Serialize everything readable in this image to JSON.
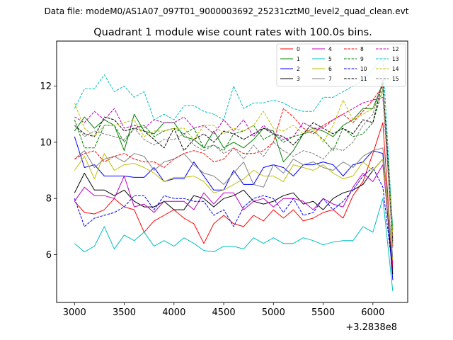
{
  "suptitle": "Data file: modeM0/AS1A07_097T01_9000003692_25231cztM0_level2_quad_clean.evt",
  "chart_data": {
    "type": "line",
    "title": "Quadrant 1 module wise count rates with 100.0s bins.",
    "xlabel": "",
    "ylabel": "",
    "x_offset_label": "+3.2838e8",
    "xlim": [
      2820,
      6350
    ],
    "ylim": [
      4.3,
      13.6
    ],
    "xticks": [
      3000,
      3500,
      4000,
      4500,
      5000,
      5500,
      6000
    ],
    "yticks": [
      6,
      8,
      10,
      12
    ],
    "grid": false,
    "legend": {
      "position": "top-right",
      "columns": 4
    },
    "x": [
      3000,
      3100,
      3200,
      3300,
      3400,
      3500,
      3600,
      3700,
      3800,
      3900,
      4000,
      4100,
      4200,
      4300,
      4400,
      4500,
      4600,
      4700,
      4800,
      4900,
      5000,
      5100,
      5200,
      5300,
      5400,
      5500,
      5600,
      5700,
      5800,
      5900,
      6000,
      6100,
      6200
    ],
    "series": [
      {
        "name": "0",
        "color": "#ff0000",
        "dash": "solid",
        "values": [
          7.9,
          7.5,
          7.45,
          7.6,
          8.0,
          7.7,
          7.6,
          6.8,
          7.2,
          7.4,
          7.6,
          7.3,
          7.1,
          6.4,
          7.1,
          7.4,
          7.1,
          7.0,
          7.4,
          7.2,
          7.6,
          7.3,
          7.6,
          7.2,
          7.3,
          7.5,
          7.6,
          7.3,
          8.1,
          8.6,
          9.6,
          10.7,
          5.5
        ]
      },
      {
        "name": "1",
        "color": "#008000",
        "dash": "solid",
        "values": [
          10.4,
          10.9,
          10.5,
          10.8,
          10.6,
          9.7,
          11.0,
          10.4,
          10.3,
          10.7,
          10.7,
          10.2,
          10.1,
          9.8,
          10.4,
          9.8,
          10.0,
          9.8,
          10.1,
          10.5,
          10.4,
          9.3,
          9.7,
          10.3,
          10.5,
          10.4,
          10.2,
          10.6,
          10.8,
          11.2,
          11.2,
          12.1,
          6.9
        ]
      },
      {
        "name": "2",
        "color": "#0000ff",
        "dash": "solid",
        "values": [
          10.2,
          9.1,
          9.2,
          8.8,
          8.8,
          8.8,
          8.75,
          8.75,
          9.1,
          8.6,
          8.7,
          8.7,
          9.3,
          8.8,
          8.3,
          8.3,
          9.0,
          8.5,
          8.5,
          9.1,
          9.2,
          9.1,
          8.8,
          9.2,
          9.2,
          9.3,
          9.2,
          8.8,
          9.2,
          9.3,
          9.7,
          9.6,
          5.1
        ]
      },
      {
        "name": "3",
        "color": "#000000",
        "dash": "solid",
        "values": [
          8.2,
          8.9,
          8.3,
          8.3,
          8.1,
          8.3,
          7.9,
          7.7,
          7.7,
          7.9,
          7.6,
          7.6,
          8.1,
          8.0,
          7.7,
          8.0,
          8.1,
          8.3,
          7.9,
          7.8,
          7.9,
          8.1,
          8.2,
          7.8,
          7.9,
          7.6,
          8.0,
          8.2,
          8.3,
          8.5,
          9.0,
          9.4,
          5.3
        ]
      },
      {
        "name": "4",
        "color": "#bf00bf",
        "dash": "solid",
        "values": [
          7.9,
          8.4,
          8.1,
          8.1,
          8.0,
          8.8,
          7.7,
          7.8,
          7.5,
          7.9,
          7.9,
          7.9,
          7.6,
          8.2,
          7.8,
          8.2,
          8.2,
          7.6,
          7.9,
          8.0,
          7.7,
          8.0,
          8.0,
          7.9,
          7.6,
          8.0,
          7.8,
          7.7,
          8.4,
          8.9,
          8.6,
          9.2,
          5.7
        ]
      },
      {
        "name": "5",
        "color": "#00bfbf",
        "dash": "solid",
        "values": [
          6.4,
          6.1,
          6.3,
          7.0,
          6.2,
          6.7,
          6.5,
          6.8,
          6.3,
          6.5,
          6.3,
          6.6,
          6.4,
          6.15,
          6.1,
          6.3,
          6.3,
          6.2,
          6.6,
          6.4,
          6.6,
          6.4,
          6.4,
          6.6,
          6.5,
          6.35,
          6.45,
          6.5,
          6.5,
          7.0,
          6.8,
          8.0,
          4.7
        ]
      },
      {
        "name": "6",
        "color": "#bfbf00",
        "dash": "solid",
        "values": [
          9.0,
          9.5,
          8.7,
          9.6,
          9.0,
          9.2,
          9.25,
          9.1,
          8.9,
          8.6,
          8.75,
          8.75,
          8.8,
          8.6,
          8.2,
          8.3,
          8.5,
          8.7,
          9.0,
          8.8,
          8.8,
          8.6,
          9.2,
          9.1,
          9.0,
          9.2,
          8.9,
          8.7,
          8.8,
          9.3,
          9.0,
          9.4,
          5.8
        ]
      },
      {
        "name": "7",
        "color": "#808080",
        "dash": "solid",
        "values": [
          9.4,
          9.7,
          9.1,
          9.4,
          9.5,
          9.3,
          9.6,
          9.5,
          9.0,
          9.3,
          9.4,
          9.6,
          9.2,
          8.9,
          8.8,
          8.5,
          8.9,
          9.3,
          8.5,
          8.4,
          9.2,
          8.9,
          9.4,
          9.2,
          9.3,
          9.1,
          9.0,
          9.3,
          9.1,
          9.5,
          9.7,
          9.8,
          5.9
        ]
      },
      {
        "name": "8",
        "color": "#ff0000",
        "dash": "dashed",
        "values": [
          9.4,
          9.6,
          9.7,
          9.3,
          9.5,
          9.6,
          9.4,
          9.3,
          9.3,
          9.1,
          9.4,
          9.6,
          9.7,
          9.6,
          9.3,
          9.4,
          9.8,
          9.6,
          9.6,
          9.7,
          10.0,
          11.2,
          10.9,
          10.5,
          10.3,
          10.6,
          10.8,
          11.0,
          10.7,
          11.1,
          11.5,
          12.0,
          6.3
        ]
      },
      {
        "name": "9",
        "color": "#008000",
        "dash": "dashed",
        "values": [
          10.8,
          9.8,
          9.8,
          10.6,
          10.6,
          10.0,
          10.5,
          10.6,
          10.2,
          10.4,
          10.5,
          10.3,
          10.5,
          9.8,
          9.9,
          9.7,
          10.3,
          10.4,
          10.6,
          10.1,
          10.3,
          10.0,
          10.2,
          10.3,
          10.4,
          10.1,
          9.7,
          10.5,
          10.2,
          10.3,
          10.7,
          11.9,
          6.4
        ]
      },
      {
        "name": "10",
        "color": "#0000ff",
        "dash": "dashed",
        "values": [
          8.0,
          7.0,
          7.3,
          7.4,
          7.5,
          7.7,
          8.1,
          8.1,
          7.6,
          8.1,
          8.0,
          8.0,
          7.9,
          7.9,
          7.4,
          7.6,
          7.0,
          7.7,
          8.0,
          8.1,
          8.0,
          7.5,
          8.0,
          7.4,
          7.5,
          8.0,
          7.6,
          7.9,
          8.3,
          8.8,
          9.1,
          8.4,
          5.4
        ]
      },
      {
        "name": "11",
        "color": "#000000",
        "dash": "dashed",
        "values": [
          10.6,
          10.3,
          10.2,
          10.9,
          10.8,
          10.4,
          10.5,
          10.4,
          10.1,
          9.8,
          10.5,
          9.7,
          10.1,
          10.3,
          10.0,
          10.4,
          10.3,
          10.1,
          10.3,
          10.5,
          10.3,
          10.2,
          9.9,
          10.3,
          10.7,
          10.5,
          10.3,
          10.5,
          10.3,
          10.8,
          10.7,
          12.2,
          6.5
        ]
      },
      {
        "name": "12",
        "color": "#bf00bf",
        "dash": "dashed",
        "values": [
          10.9,
          10.7,
          11.1,
          10.8,
          11.2,
          10.5,
          10.6,
          10.5,
          10.8,
          10.7,
          10.7,
          10.9,
          10.5,
          10.6,
          10.3,
          10.8,
          10.4,
          10.8,
          10.2,
          10.6,
          10.3,
          10.1,
          10.2,
          10.7,
          10.5,
          10.5,
          10.8,
          11.0,
          11.2,
          11.4,
          11.5,
          11.6,
          6.6
        ]
      },
      {
        "name": "13",
        "color": "#00bfbf",
        "dash": "dashed",
        "values": [
          11.2,
          11.9,
          11.9,
          12.4,
          11.8,
          12.0,
          11.6,
          11.8,
          10.8,
          11.0,
          10.8,
          11.3,
          11.3,
          11.1,
          11.0,
          10.8,
          12.0,
          11.2,
          11.4,
          11.4,
          11.5,
          11.4,
          11.2,
          11.1,
          11.1,
          11.6,
          11.6,
          11.8,
          12.0,
          12.2,
          12.6,
          13.0,
          6.8
        ]
      },
      {
        "name": "14",
        "color": "#bfbf00",
        "dash": "dashed",
        "values": [
          11.4,
          10.5,
          10.2,
          10.6,
          10.6,
          10.7,
          10.8,
          10.2,
          10.4,
          10.4,
          10.5,
          10.5,
          10.1,
          10.6,
          10.6,
          10.3,
          10.5,
          10.4,
          10.6,
          11.1,
          10.5,
          10.4,
          10.6,
          10.3,
          10.5,
          10.0,
          10.6,
          11.5,
          10.8,
          11.0,
          11.2,
          11.8,
          6.7
        ]
      },
      {
        "name": "15",
        "color": "#808080",
        "dash": "dashed",
        "values": [
          10.6,
          10.2,
          10.4,
          10.3,
          10.2,
          10.1,
          10.5,
          10.1,
          9.9,
          10.1,
          10.1,
          10.3,
          9.9,
          9.7,
          9.9,
          9.6,
          9.8,
          9.4,
          9.9,
          9.5,
          10.0,
          9.7,
          9.5,
          9.7,
          9.6,
          9.4,
          9.8,
          9.7,
          10.0,
          10.6,
          11.0,
          12.2,
          6.2
        ]
      }
    ]
  }
}
